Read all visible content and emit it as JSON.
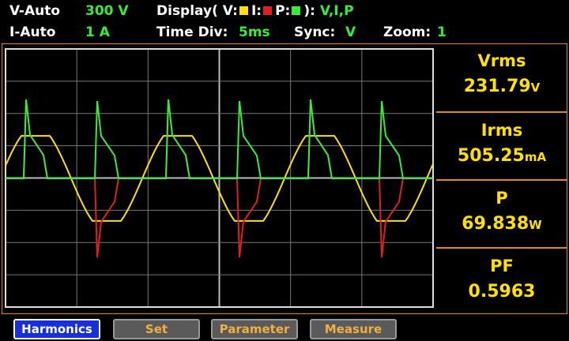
{
  "status": {
    "row1": {
      "v_range_mode": "V-Auto",
      "v_range": "300 V",
      "display_label": "Display( V:",
      "i_label": "I:",
      "p_label": "P:",
      "display_close": "):",
      "display_value": "V,I,P"
    },
    "row2": {
      "i_range_mode": "I-Auto",
      "i_range": "1 A",
      "time_div_label": "Time Div:",
      "time_div": "5ms",
      "sync_label": "Sync:",
      "sync": "V",
      "zoom_label": "Zoom:",
      "zoom": "1"
    }
  },
  "measurements": [
    {
      "label": "Vrms",
      "value": "231.79",
      "unit": "V"
    },
    {
      "label": "Irms",
      "value": "505.25",
      "unit": "mA"
    },
    {
      "label": "P",
      "value": "69.838",
      "unit": "W"
    },
    {
      "label": "PF",
      "value": "0.5963",
      "unit": ""
    }
  ],
  "buttons": [
    "Harmonics",
    "Set",
    "Parameter",
    "Measure"
  ]
}
